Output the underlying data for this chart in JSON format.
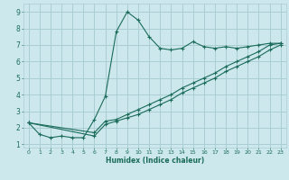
{
  "xlabel": "Humidex (Indice chaleur)",
  "bg_color": "#cce8ec",
  "grid_color": "#aacdd4",
  "line_color": "#1a6b5a",
  "xlim": [
    -0.5,
    23.5
  ],
  "ylim": [
    0.8,
    9.5
  ],
  "xticks": [
    0,
    1,
    2,
    3,
    4,
    5,
    6,
    7,
    8,
    9,
    10,
    11,
    12,
    13,
    14,
    15,
    16,
    17,
    18,
    19,
    20,
    21,
    22,
    23
  ],
  "yticks": [
    1,
    2,
    3,
    4,
    5,
    6,
    7,
    8,
    9
  ],
  "line1_x": [
    0,
    1,
    2,
    3,
    4,
    5,
    6,
    7,
    8,
    9,
    10,
    11,
    12,
    13,
    14,
    15,
    16,
    17,
    18,
    19,
    20,
    21,
    22,
    23
  ],
  "line1_y": [
    2.3,
    1.6,
    1.4,
    1.5,
    1.4,
    1.4,
    2.5,
    3.9,
    7.8,
    9.0,
    8.5,
    7.5,
    6.8,
    6.7,
    6.8,
    7.2,
    6.9,
    6.8,
    6.9,
    6.8,
    6.9,
    7.0,
    7.1,
    7.1
  ],
  "line2_x": [
    0,
    6,
    7,
    8,
    9,
    10,
    11,
    12,
    13,
    14,
    15,
    16,
    17,
    18,
    19,
    20,
    21,
    22,
    23
  ],
  "line2_y": [
    2.3,
    1.7,
    2.4,
    2.5,
    2.8,
    3.1,
    3.4,
    3.7,
    4.0,
    4.4,
    4.7,
    5.0,
    5.3,
    5.7,
    6.0,
    6.3,
    6.6,
    7.0,
    7.1
  ],
  "line3_x": [
    0,
    6,
    7,
    8,
    9,
    10,
    11,
    12,
    13,
    14,
    15,
    16,
    17,
    18,
    19,
    20,
    21,
    22,
    23
  ],
  "line3_y": [
    2.3,
    1.5,
    2.2,
    2.4,
    2.6,
    2.8,
    3.1,
    3.4,
    3.7,
    4.1,
    4.4,
    4.7,
    5.0,
    5.4,
    5.7,
    6.0,
    6.3,
    6.7,
    7.0
  ]
}
